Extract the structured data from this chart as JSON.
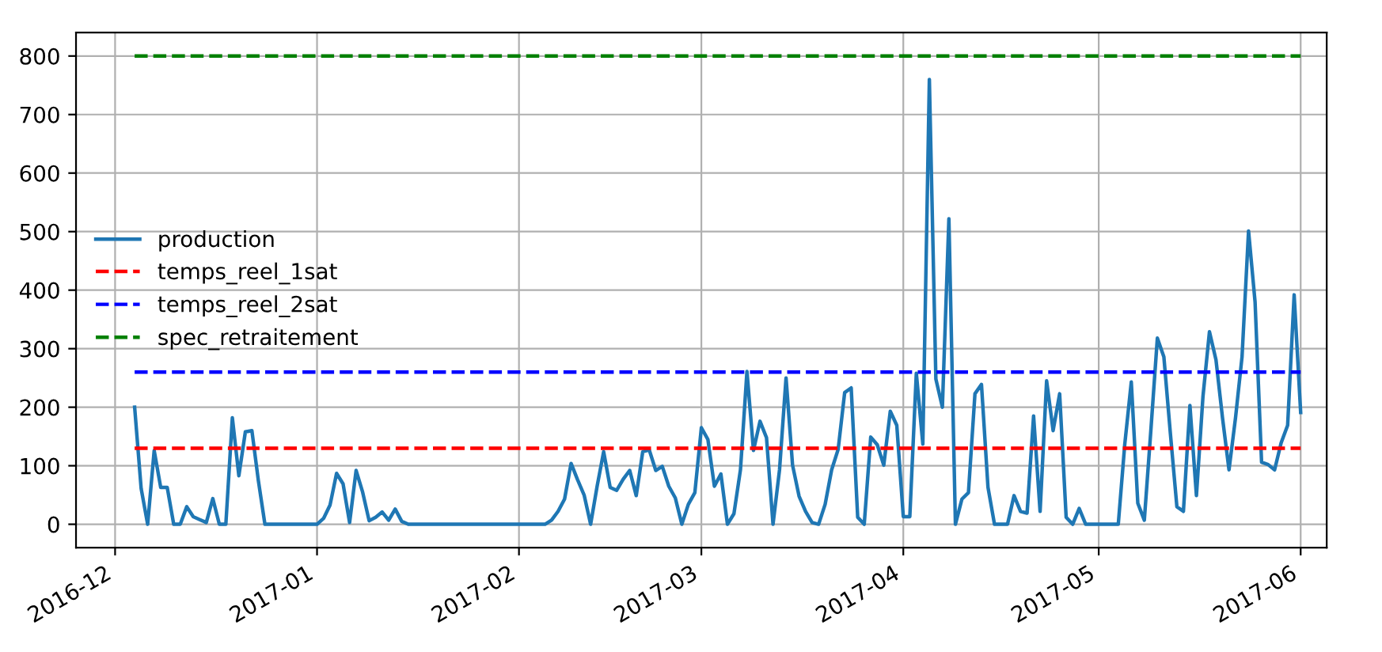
{
  "chart_data": {
    "type": "line",
    "x": [
      "2016-12-04",
      "2016-12-05",
      "2016-12-06",
      "2016-12-07",
      "2016-12-08",
      "2016-12-09",
      "2016-12-10",
      "2016-12-11",
      "2016-12-12",
      "2016-12-13",
      "2016-12-14",
      "2016-12-15",
      "2016-12-16",
      "2016-12-17",
      "2016-12-18",
      "2016-12-19",
      "2016-12-20",
      "2016-12-21",
      "2016-12-22",
      "2016-12-23",
      "2016-12-24",
      "2017-01-01",
      "2017-01-02",
      "2017-01-03",
      "2017-01-04",
      "2017-01-05",
      "2017-01-06",
      "2017-01-07",
      "2017-01-08",
      "2017-01-09",
      "2017-01-10",
      "2017-01-11",
      "2017-01-12",
      "2017-01-13",
      "2017-01-14",
      "2017-01-15",
      "2017-02-05",
      "2017-02-06",
      "2017-02-07",
      "2017-02-08",
      "2017-02-09",
      "2017-02-10",
      "2017-02-11",
      "2017-02-12",
      "2017-02-13",
      "2017-02-14",
      "2017-02-15",
      "2017-02-16",
      "2017-02-17",
      "2017-02-18",
      "2017-02-19",
      "2017-02-20",
      "2017-02-21",
      "2017-02-22",
      "2017-02-23",
      "2017-02-24",
      "2017-02-25",
      "2017-02-26",
      "2017-02-27",
      "2017-02-28",
      "2017-03-01",
      "2017-03-02",
      "2017-03-03",
      "2017-03-04",
      "2017-03-05",
      "2017-03-06",
      "2017-03-07",
      "2017-03-08",
      "2017-03-09",
      "2017-03-10",
      "2017-03-11",
      "2017-03-12",
      "2017-03-13",
      "2017-03-14",
      "2017-03-15",
      "2017-03-16",
      "2017-03-17",
      "2017-03-18",
      "2017-03-19",
      "2017-03-20",
      "2017-03-21",
      "2017-03-22",
      "2017-03-23",
      "2017-03-24",
      "2017-03-25",
      "2017-03-26",
      "2017-03-27",
      "2017-03-28",
      "2017-03-29",
      "2017-03-30",
      "2017-03-31",
      "2017-04-01",
      "2017-04-02",
      "2017-04-03",
      "2017-04-04",
      "2017-04-05",
      "2017-04-06",
      "2017-04-07",
      "2017-04-08",
      "2017-04-09",
      "2017-04-10",
      "2017-04-11",
      "2017-04-12",
      "2017-04-13",
      "2017-04-14",
      "2017-04-15",
      "2017-04-16",
      "2017-04-17",
      "2017-04-18",
      "2017-04-19",
      "2017-04-20",
      "2017-04-21",
      "2017-04-22",
      "2017-04-23",
      "2017-04-24",
      "2017-04-25",
      "2017-04-26",
      "2017-04-27",
      "2017-04-28",
      "2017-04-29",
      "2017-05-04",
      "2017-05-05",
      "2017-05-06",
      "2017-05-07",
      "2017-05-08",
      "2017-05-09",
      "2017-05-10",
      "2017-05-11",
      "2017-05-12",
      "2017-05-13",
      "2017-05-14",
      "2017-05-15",
      "2017-05-16",
      "2017-05-17",
      "2017-05-18",
      "2017-05-19",
      "2017-05-20",
      "2017-05-21",
      "2017-05-22",
      "2017-05-23",
      "2017-05-24",
      "2017-05-25",
      "2017-05-26",
      "2017-05-27",
      "2017-05-28",
      "2017-05-29",
      "2017-05-30",
      "2017-05-31",
      "2017-06-01"
    ],
    "series": [
      {
        "name": "production",
        "color": "#1f77b4",
        "values": [
          200,
          61,
          0,
          126,
          63,
          63,
          0,
          0,
          30,
          13,
          8,
          3,
          44,
          0,
          0,
          182,
          83,
          158,
          160,
          74,
          0,
          0,
          10,
          33,
          87,
          69,
          3,
          92,
          55,
          6,
          12,
          21,
          7,
          26,
          5,
          0,
          0,
          7,
          22,
          43,
          104,
          76,
          50,
          0,
          65,
          124,
          63,
          58,
          77,
          92,
          49,
          124,
          127,
          92,
          99,
          65,
          45,
          0,
          34,
          54,
          165,
          145,
          65,
          86,
          0,
          18,
          93,
          261,
          126,
          176,
          148,
          0,
          93,
          250,
          101,
          48,
          22,
          3,
          0,
          34,
          93,
          128,
          225,
          233,
          12,
          0,
          149,
          136,
          101,
          193,
          169,
          13,
          13,
          258,
          137,
          760,
          248,
          200,
          522,
          0,
          43,
          54,
          223,
          239,
          63,
          0,
          0,
          0,
          49,
          22,
          19,
          185,
          22,
          245,
          160,
          223,
          12,
          0,
          27,
          0,
          0,
          137,
          243,
          36,
          7,
          160,
          318,
          286,
          155,
          30,
          22,
          203,
          49,
          218,
          329,
          281,
          182,
          93,
          182,
          286,
          501,
          380,
          106,
          102,
          93,
          139,
          169,
          392,
          191
        ]
      }
    ],
    "ref_lines": [
      {
        "axis": "y",
        "value": 130,
        "label": "temps_reel_1sat",
        "color": "#ff0000",
        "line_style": "dashed"
      },
      {
        "axis": "y",
        "value": 260,
        "label": "temps_reel_2sat",
        "color": "#0000ff",
        "line_style": "dashed"
      },
      {
        "axis": "y",
        "value": 800,
        "label": "spec_retraitement",
        "color": "#008000",
        "line_style": "dashed"
      }
    ],
    "xlim": [
      "2016-11-25",
      "2017-06-05"
    ],
    "xticks": [
      {
        "value": "2016-12-01",
        "label": "2016-12"
      },
      {
        "value": "2017-01-01",
        "label": "2017-01"
      },
      {
        "value": "2017-02-01",
        "label": "2017-02"
      },
      {
        "value": "2017-03-01",
        "label": "2017-03"
      },
      {
        "value": "2017-04-01",
        "label": "2017-04"
      },
      {
        "value": "2017-05-01",
        "label": "2017-05"
      },
      {
        "value": "2017-06-01",
        "label": "2017-06"
      }
    ],
    "ylim": [
      -40,
      840
    ],
    "yticks": [
      0,
      100,
      200,
      300,
      400,
      500,
      600,
      700,
      800
    ],
    "grid": true,
    "legend": "center left",
    "line_style": "solid",
    "marker": "none"
  }
}
